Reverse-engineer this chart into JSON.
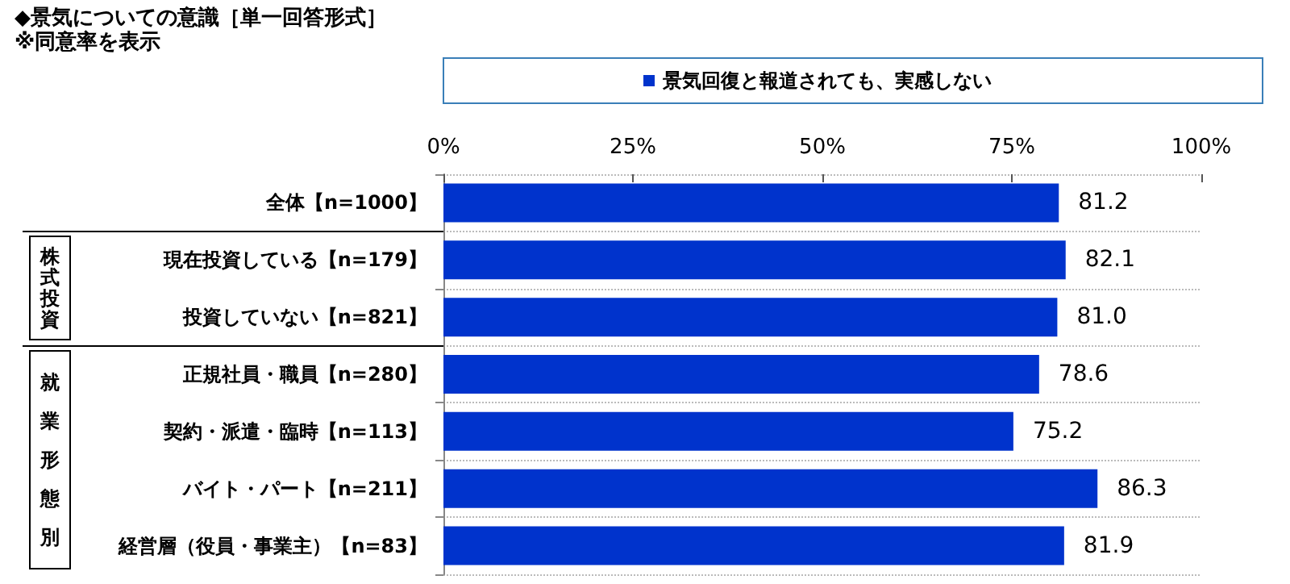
{
  "chart_data": {
    "type": "bar",
    "orientation": "horizontal",
    "title": "◆景気についての意識［単一回答形式］",
    "subtitle": "※同意率を表示",
    "categories": [
      "全体【n=1000】",
      "現在投資している【n=179】",
      "投資していない【n=821】",
      "正規社員・職員【n=280】",
      "契約・派遣・臨時【n=113】",
      "バイト・パート【n=211】",
      "経営層（役員・事業主）【n=83】"
    ],
    "series": [
      {
        "name": "景気回復と報道されても、実感しない",
        "color": "#0033cc",
        "values": [
          81.2,
          82.1,
          81.0,
          78.6,
          75.2,
          86.3,
          81.9
        ],
        "value_labels": [
          "81.2",
          "82.1",
          "81.0",
          "78.6",
          "75.2",
          "86.3",
          "81.9"
        ]
      }
    ],
    "xlim": [
      0,
      100
    ],
    "xticks": [
      {
        "value": 0,
        "label": "0%"
      },
      {
        "value": 25,
        "label": "25%"
      },
      {
        "value": 50,
        "label": "50%"
      },
      {
        "value": 75,
        "label": "75%"
      },
      {
        "value": 100,
        "label": "100%"
      }
    ],
    "annotations": [
      "株式投資",
      "就業形態別"
    ],
    "data_labels": true,
    "grid": "y",
    "legend": "top"
  }
}
